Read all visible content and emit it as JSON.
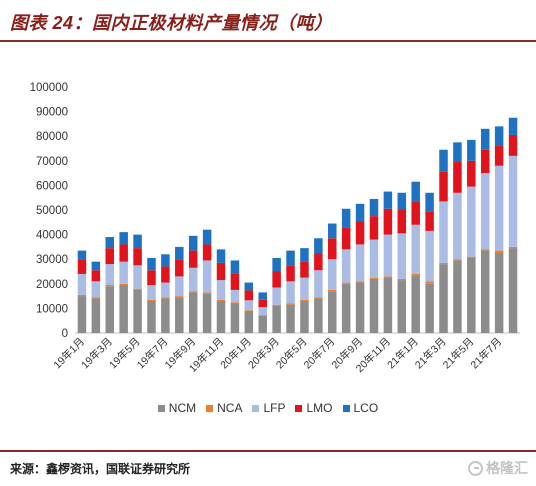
{
  "header": {
    "title": "图表 24：国内正极材料产量情况（吨）"
  },
  "chart_data": {
    "type": "bar",
    "stacked": true,
    "categories": [
      "19年1月",
      "",
      "19年3月",
      "",
      "19年5月",
      "",
      "19年7月",
      "",
      "19年9月",
      "",
      "19年11月",
      "",
      "20年1月",
      "",
      "20年3月",
      "",
      "20年5月",
      "",
      "20年7月",
      "",
      "20年9月",
      "",
      "20年11月",
      "",
      "21年1月",
      "",
      "21年3月",
      "",
      "21年5月",
      "",
      "21年7月",
      ""
    ],
    "series": [
      {
        "name": "NCM",
        "color": "#8c8c8c",
        "values": [
          15000,
          14000,
          19000,
          19500,
          17500,
          13000,
          14000,
          14500,
          16500,
          16000,
          13000,
          12000,
          9000,
          7000,
          11000,
          11500,
          13000,
          14000,
          17000,
          20000,
          20500,
          22000,
          22500,
          21500,
          23500,
          20000,
          28000,
          29500,
          30500,
          33500,
          32500,
          34500
        ]
      },
      {
        "name": "NCA",
        "color": "#ed7d31",
        "values": [
          500,
          500,
          500,
          500,
          500,
          500,
          500,
          500,
          500,
          500,
          500,
          500,
          300,
          300,
          500,
          500,
          500,
          500,
          500,
          500,
          500,
          500,
          500,
          500,
          500,
          1000,
          500,
          500,
          500,
          500,
          1000,
          500
        ]
      },
      {
        "name": "LFP",
        "color": "#abbce4",
        "values": [
          8500,
          6500,
          8500,
          9000,
          9500,
          6000,
          6000,
          8000,
          9500,
          13000,
          8000,
          5000,
          4000,
          3200,
          7000,
          9000,
          9000,
          11000,
          12500,
          13500,
          15000,
          15500,
          17000,
          18500,
          20000,
          20500,
          25000,
          27000,
          28500,
          31000,
          34500,
          37000
        ]
      },
      {
        "name": "LMO",
        "color": "#e0141c",
        "values": [
          6000,
          4500,
          6500,
          7000,
          7000,
          6000,
          6500,
          7000,
          7000,
          6500,
          7000,
          6500,
          4000,
          3000,
          6500,
          6500,
          6500,
          7000,
          8500,
          9000,
          9500,
          9500,
          10500,
          9500,
          9500,
          8000,
          12000,
          12500,
          10500,
          9500,
          8000,
          8500
        ]
      },
      {
        "name": "LCO",
        "color": "#1f72c2",
        "values": [
          3500,
          3500,
          4500,
          5000,
          5500,
          5000,
          5000,
          5000,
          6000,
          6000,
          5500,
          5500,
          3200,
          3000,
          5500,
          6000,
          5500,
          6000,
          6000,
          7500,
          7000,
          7000,
          7000,
          7000,
          8000,
          7500,
          9000,
          8000,
          8500,
          8500,
          8000,
          7000
        ]
      }
    ],
    "ylim": [
      0,
      100000
    ],
    "yticks": [
      "0",
      "10000",
      "20000",
      "30000",
      "40000",
      "50000",
      "60000",
      "70000",
      "80000",
      "90000",
      "100000"
    ],
    "grid": false,
    "legend": "bottom"
  },
  "footer": {
    "source": "来源：鑫椤资讯，国联证券研究所",
    "watermark": "格隆汇"
  }
}
